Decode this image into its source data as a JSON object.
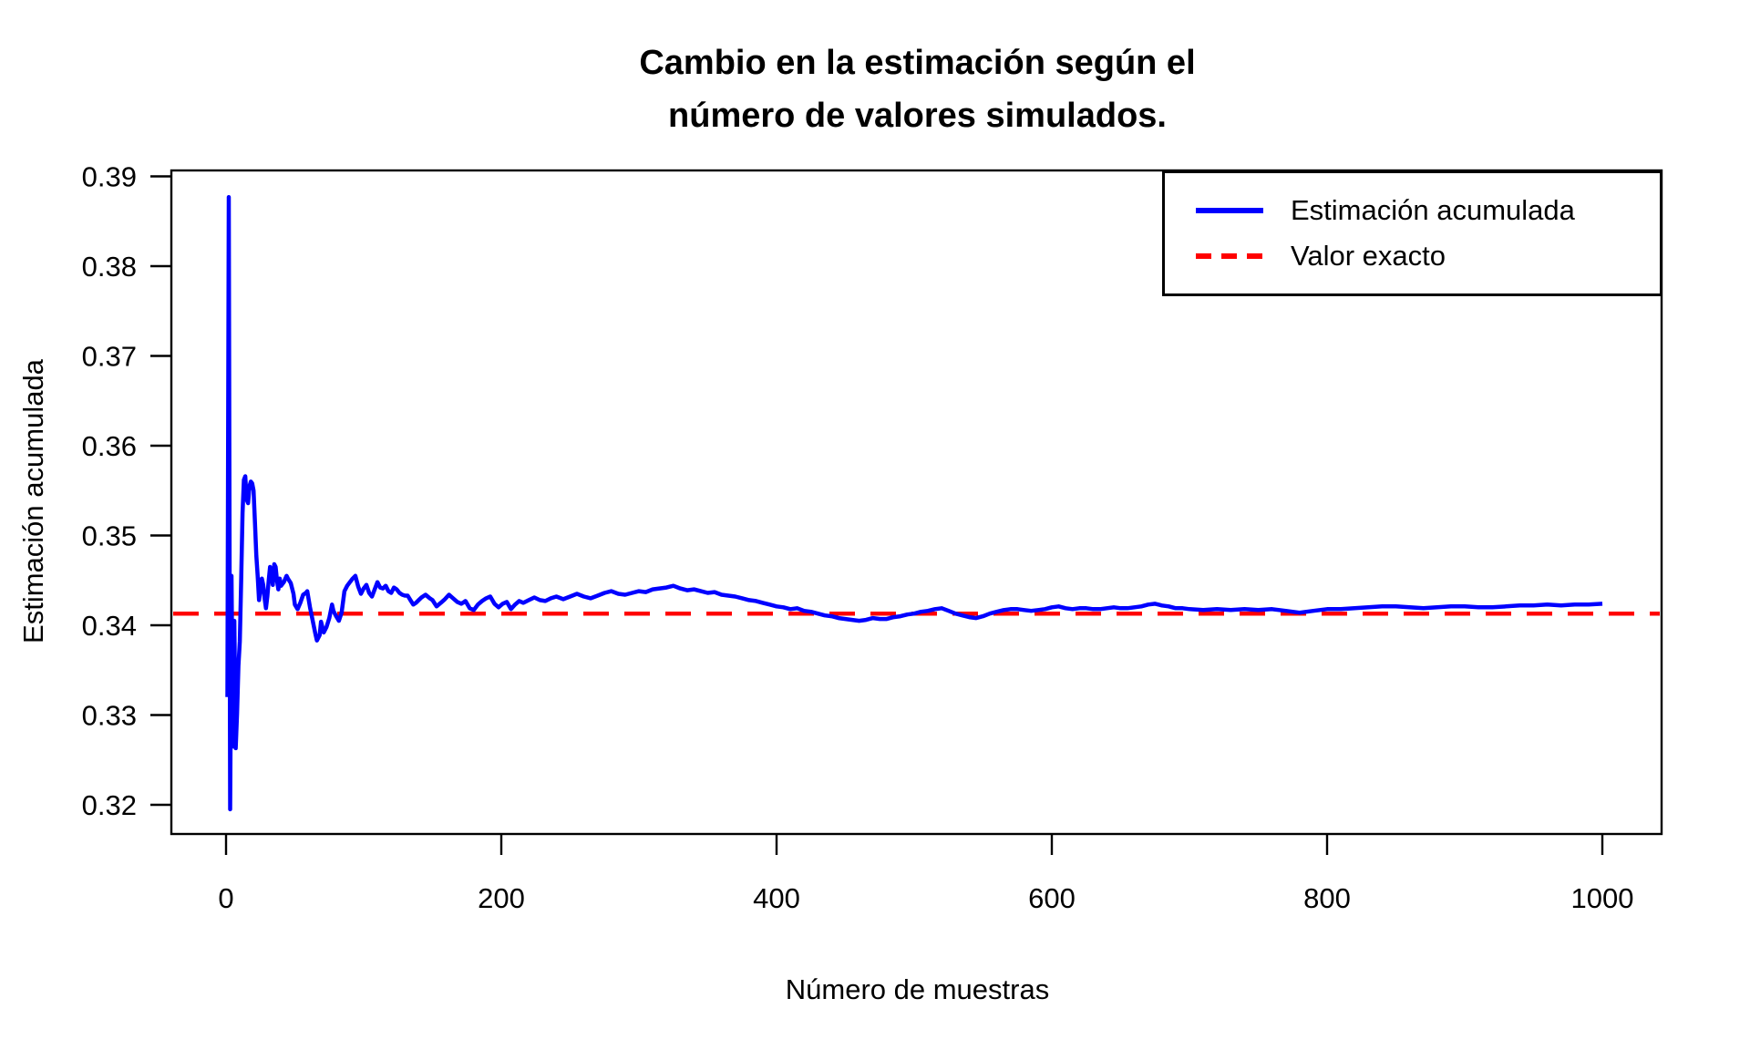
{
  "figure": {
    "background": "#ffffff",
    "title": "Cambio en la estimación según el\nnúmero de valores simulados."
  },
  "axes": {
    "x_title": "Número de muestras",
    "y_title": "Estimación acumulada"
  },
  "legend": {
    "items": [
      {
        "label": "Estimación acumulada",
        "color": "#0000FF",
        "style": "solid"
      },
      {
        "label": "Valor exacto",
        "color": "#FF0000",
        "style": "dashed"
      }
    ]
  },
  "colors": {
    "estimate_line": "#0000FF",
    "exact_line": "#FF0000",
    "axis": "#000000",
    "background": "#ffffff"
  },
  "chart_data": {
    "type": "line",
    "title": "Cambio en la estimación según el número de valores simulados.",
    "xlabel": "Número de muestras",
    "ylabel": "Estimación acumulada",
    "xlim": [
      0,
      1000
    ],
    "ylim": [
      0.32,
      0.39
    ],
    "x_ticks": [
      "0",
      "200",
      "400",
      "600",
      "800",
      "1000"
    ],
    "y_ticks": [
      "0.32",
      "0.33",
      "0.34",
      "0.35",
      "0.36",
      "0.37",
      "0.38",
      "0.39"
    ],
    "grid": false,
    "legend_position": "top-right",
    "exact_value": 0.3413,
    "series": [
      {
        "name": "Estimación acumulada",
        "color": "#0000FF",
        "style": "solid",
        "points": [
          [
            1,
            0.332
          ],
          [
            2,
            0.3877
          ],
          [
            3,
            0.3195
          ],
          [
            4,
            0.3455
          ],
          [
            5,
            0.3265
          ],
          [
            6,
            0.3405
          ],
          [
            7,
            0.3263
          ],
          [
            8,
            0.3302
          ],
          [
            9,
            0.3355
          ],
          [
            10,
            0.3382
          ],
          [
            11,
            0.345
          ],
          [
            12,
            0.3525
          ],
          [
            13,
            0.3562
          ],
          [
            14,
            0.3566
          ],
          [
            15,
            0.354
          ],
          [
            16,
            0.3536
          ],
          [
            17,
            0.3555
          ],
          [
            18,
            0.356
          ],
          [
            19,
            0.3558
          ],
          [
            20,
            0.355
          ],
          [
            21,
            0.3515
          ],
          [
            22,
            0.3478
          ],
          [
            23,
            0.3455
          ],
          [
            24,
            0.3428
          ],
          [
            25,
            0.344
          ],
          [
            26,
            0.3452
          ],
          [
            27,
            0.3445
          ],
          [
            28,
            0.343
          ],
          [
            29,
            0.3419
          ],
          [
            30,
            0.3432
          ],
          [
            31,
            0.345
          ],
          [
            32,
            0.3465
          ],
          [
            33,
            0.346
          ],
          [
            34,
            0.3445
          ],
          [
            35,
            0.3468
          ],
          [
            36,
            0.3465
          ],
          [
            37,
            0.345
          ],
          [
            38,
            0.344
          ],
          [
            39,
            0.3452
          ],
          [
            40,
            0.3444
          ],
          [
            42,
            0.3448
          ],
          [
            44,
            0.3455
          ],
          [
            45,
            0.3452
          ],
          [
            47,
            0.3447
          ],
          [
            49,
            0.3435
          ],
          [
            50,
            0.3423
          ],
          [
            52,
            0.3418
          ],
          [
            54,
            0.3425
          ],
          [
            56,
            0.3434
          ],
          [
            58,
            0.3436
          ],
          [
            59,
            0.3438
          ],
          [
            61,
            0.342
          ],
          [
            63,
            0.3405
          ],
          [
            65,
            0.339
          ],
          [
            66,
            0.3383
          ],
          [
            68,
            0.3389
          ],
          [
            69,
            0.3404
          ],
          [
            71,
            0.3392
          ],
          [
            73,
            0.3398
          ],
          [
            75,
            0.3408
          ],
          [
            77,
            0.3423
          ],
          [
            78,
            0.3416
          ],
          [
            80,
            0.341
          ],
          [
            82,
            0.3405
          ],
          [
            84,
            0.3414
          ],
          [
            86,
            0.3438
          ],
          [
            88,
            0.3444
          ],
          [
            90,
            0.3448
          ],
          [
            92,
            0.3452
          ],
          [
            94,
            0.3455
          ],
          [
            96,
            0.3443
          ],
          [
            98,
            0.3435
          ],
          [
            100,
            0.3441
          ],
          [
            102,
            0.3445
          ],
          [
            104,
            0.3436
          ],
          [
            106,
            0.3432
          ],
          [
            108,
            0.344
          ],
          [
            110,
            0.3448
          ],
          [
            112,
            0.3442
          ],
          [
            114,
            0.3441
          ],
          [
            116,
            0.3444
          ],
          [
            118,
            0.3438
          ],
          [
            120,
            0.3436
          ],
          [
            122,
            0.3442
          ],
          [
            124,
            0.344
          ],
          [
            126,
            0.3436
          ],
          [
            128,
            0.3434
          ],
          [
            130,
            0.3433
          ],
          [
            132,
            0.3433
          ],
          [
            134,
            0.3428
          ],
          [
            136,
            0.3423
          ],
          [
            138,
            0.3425
          ],
          [
            140,
            0.3428
          ],
          [
            142,
            0.3431
          ],
          [
            145,
            0.3434
          ],
          [
            148,
            0.343
          ],
          [
            150,
            0.3428
          ],
          [
            153,
            0.3421
          ],
          [
            156,
            0.3425
          ],
          [
            159,
            0.3429
          ],
          [
            162,
            0.3434
          ],
          [
            165,
            0.343
          ],
          [
            168,
            0.3426
          ],
          [
            171,
            0.3424
          ],
          [
            174,
            0.3427
          ],
          [
            177,
            0.3419
          ],
          [
            180,
            0.3417
          ],
          [
            183,
            0.3423
          ],
          [
            186,
            0.3427
          ],
          [
            189,
            0.343
          ],
          [
            192,
            0.3432
          ],
          [
            195,
            0.3424
          ],
          [
            198,
            0.342
          ],
          [
            201,
            0.3424
          ],
          [
            204,
            0.3426
          ],
          [
            207,
            0.3418
          ],
          [
            210,
            0.3423
          ],
          [
            213,
            0.3427
          ],
          [
            216,
            0.3425
          ],
          [
            220,
            0.3428
          ],
          [
            224,
            0.3431
          ],
          [
            228,
            0.3428
          ],
          [
            232,
            0.3427
          ],
          [
            236,
            0.343
          ],
          [
            240,
            0.3432
          ],
          [
            245,
            0.3429
          ],
          [
            250,
            0.3432
          ],
          [
            255,
            0.3435
          ],
          [
            260,
            0.3432
          ],
          [
            265,
            0.343
          ],
          [
            270,
            0.3433
          ],
          [
            275,
            0.3436
          ],
          [
            280,
            0.3438
          ],
          [
            285,
            0.3435
          ],
          [
            290,
            0.3434
          ],
          [
            295,
            0.3436
          ],
          [
            300,
            0.3438
          ],
          [
            305,
            0.3437
          ],
          [
            310,
            0.344
          ],
          [
            315,
            0.3441
          ],
          [
            320,
            0.3442
          ],
          [
            325,
            0.3444
          ],
          [
            330,
            0.3441
          ],
          [
            335,
            0.3439
          ],
          [
            340,
            0.344
          ],
          [
            345,
            0.3438
          ],
          [
            350,
            0.3436
          ],
          [
            355,
            0.3437
          ],
          [
            360,
            0.3434
          ],
          [
            365,
            0.3433
          ],
          [
            370,
            0.3432
          ],
          [
            375,
            0.343
          ],
          [
            380,
            0.3428
          ],
          [
            385,
            0.3427
          ],
          [
            390,
            0.3425
          ],
          [
            395,
            0.3423
          ],
          [
            400,
            0.3421
          ],
          [
            405,
            0.342
          ],
          [
            410,
            0.3418
          ],
          [
            415,
            0.3419
          ],
          [
            420,
            0.3416
          ],
          [
            425,
            0.3415
          ],
          [
            430,
            0.3413
          ],
          [
            435,
            0.3411
          ],
          [
            440,
            0.341
          ],
          [
            445,
            0.3408
          ],
          [
            450,
            0.3407
          ],
          [
            455,
            0.3406
          ],
          [
            460,
            0.3405
          ],
          [
            465,
            0.3406
          ],
          [
            470,
            0.3408
          ],
          [
            475,
            0.3407
          ],
          [
            480,
            0.3407
          ],
          [
            485,
            0.3409
          ],
          [
            490,
            0.341
          ],
          [
            495,
            0.3412
          ],
          [
            500,
            0.3413
          ],
          [
            505,
            0.3415
          ],
          [
            510,
            0.3416
          ],
          [
            515,
            0.3418
          ],
          [
            520,
            0.3419
          ],
          [
            525,
            0.3416
          ],
          [
            530,
            0.3413
          ],
          [
            535,
            0.3411
          ],
          [
            540,
            0.3409
          ],
          [
            545,
            0.3408
          ],
          [
            550,
            0.341
          ],
          [
            555,
            0.3413
          ],
          [
            560,
            0.3415
          ],
          [
            565,
            0.3417
          ],
          [
            570,
            0.3418
          ],
          [
            575,
            0.3418
          ],
          [
            580,
            0.3417
          ],
          [
            585,
            0.3416
          ],
          [
            590,
            0.3417
          ],
          [
            595,
            0.3418
          ],
          [
            600,
            0.342
          ],
          [
            605,
            0.3421
          ],
          [
            610,
            0.3419
          ],
          [
            615,
            0.3418
          ],
          [
            620,
            0.3419
          ],
          [
            625,
            0.3419
          ],
          [
            630,
            0.3418
          ],
          [
            635,
            0.3418
          ],
          [
            640,
            0.3419
          ],
          [
            645,
            0.342
          ],
          [
            650,
            0.3419
          ],
          [
            655,
            0.3419
          ],
          [
            660,
            0.342
          ],
          [
            665,
            0.3421
          ],
          [
            670,
            0.3423
          ],
          [
            675,
            0.3424
          ],
          [
            680,
            0.3422
          ],
          [
            685,
            0.3421
          ],
          [
            690,
            0.3419
          ],
          [
            695,
            0.3419
          ],
          [
            700,
            0.3418
          ],
          [
            710,
            0.3417
          ],
          [
            720,
            0.3418
          ],
          [
            730,
            0.3417
          ],
          [
            740,
            0.3418
          ],
          [
            750,
            0.3417
          ],
          [
            760,
            0.3418
          ],
          [
            770,
            0.3416
          ],
          [
            780,
            0.3414
          ],
          [
            790,
            0.3416
          ],
          [
            800,
            0.3418
          ],
          [
            810,
            0.3418
          ],
          [
            820,
            0.3419
          ],
          [
            830,
            0.342
          ],
          [
            840,
            0.3421
          ],
          [
            850,
            0.3421
          ],
          [
            860,
            0.342
          ],
          [
            870,
            0.3419
          ],
          [
            880,
            0.342
          ],
          [
            890,
            0.3421
          ],
          [
            900,
            0.3421
          ],
          [
            910,
            0.342
          ],
          [
            920,
            0.342
          ],
          [
            930,
            0.3421
          ],
          [
            940,
            0.3422
          ],
          [
            950,
            0.3422
          ],
          [
            960,
            0.3423
          ],
          [
            970,
            0.3422
          ],
          [
            980,
            0.3423
          ],
          [
            990,
            0.3423
          ],
          [
            1000,
            0.3424
          ]
        ]
      },
      {
        "name": "Valor exacto",
        "color": "#FF0000",
        "style": "dashed",
        "value": 0.3413
      }
    ]
  }
}
